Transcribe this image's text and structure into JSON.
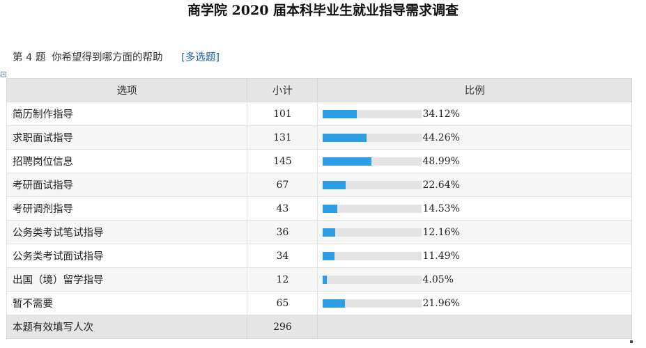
{
  "title": "商学院 2020 届本科毕业生就业指导需求调查",
  "question": {
    "number": "第 4 题",
    "text": "你希望得到哪方面的帮助",
    "type": "[多选题]"
  },
  "table": {
    "headers": {
      "option": "选项",
      "count": "小计",
      "ratio": "比例"
    },
    "bar_color": "#2d9de6",
    "bar_track_color": "#e4e4e4",
    "rows": [
      {
        "option": "简历制作指导",
        "count": "101",
        "percent": "34.12%",
        "fraction": 0.3412
      },
      {
        "option": "求职面试指导",
        "count": "131",
        "percent": "44.26%",
        "fraction": 0.4426
      },
      {
        "option": "招聘岗位信息",
        "count": "145",
        "percent": "48.99%",
        "fraction": 0.4899
      },
      {
        "option": "考研面试指导",
        "count": "67",
        "percent": "22.64%",
        "fraction": 0.2264
      },
      {
        "option": "考研调剂指导",
        "count": "43",
        "percent": "14.53%",
        "fraction": 0.1453
      },
      {
        "option": "公务类考试笔试指导",
        "count": "36",
        "percent": "12.16%",
        "fraction": 0.1216
      },
      {
        "option": "公务类考试面试指导",
        "count": "34",
        "percent": "11.49%",
        "fraction": 0.1149
      },
      {
        "option": "出国（境）留学指导",
        "count": "12",
        "percent": "4.05%",
        "fraction": 0.0405
      },
      {
        "option": "暂不需要",
        "count": "65",
        "percent": "21.96%",
        "fraction": 0.2196
      }
    ],
    "footer": {
      "label": "本题有效填写人次",
      "count": "296"
    }
  }
}
